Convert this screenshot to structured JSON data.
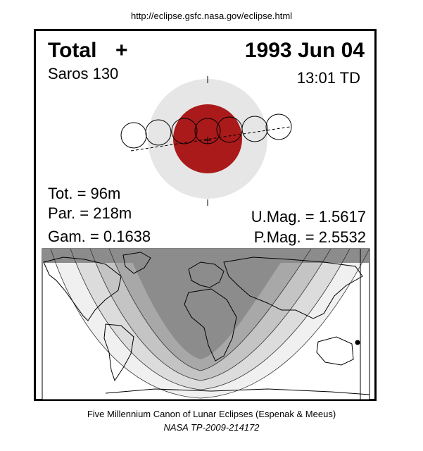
{
  "source_url": "http://eclipse.gsfc.nasa.gov/eclipse.html",
  "eclipse": {
    "type_label": "Total",
    "type_symbol": "+",
    "date": "1993 Jun 04",
    "saros": "Saros 130",
    "time": "13:01 TD",
    "totality": "Tot. =  96m",
    "partial": "Par. = 218m",
    "gamma": "Gam. = 0.1638",
    "umbral_magnitude": "U.Mag. = 1.5617",
    "penumbral_magnitude": "P.Mag. = 2.5532"
  },
  "colors": {
    "umbra": "#aa1a1a",
    "penumbra": "#e6e6e6",
    "map_night": "#8c8c8c",
    "map_bands": [
      "#a8a8a8",
      "#c4c4c4",
      "#dcdcdc",
      "#f0f0f0"
    ]
  },
  "footer": {
    "line1": "Five Millennium Canon of Lunar Eclipses (Espenak & Meeus)",
    "line2": "NASA TP-2009-214172"
  }
}
